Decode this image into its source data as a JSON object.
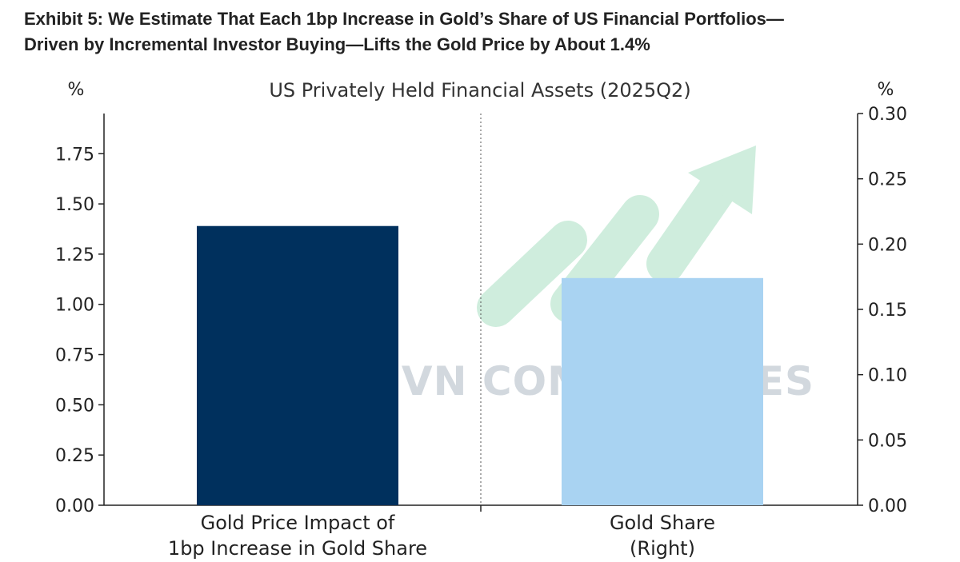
{
  "exhibit": {
    "title_line1": "Exhibit 5: We Estimate That Each 1bp Increase in Gold’s Share of US Financial Portfolios—",
    "title_line2": "Driven by Incremental Investor Buying—Lifts the Gold Price by About 1.4%"
  },
  "watermark": {
    "text": "VN COMMODITIES",
    "icon": "trend-arrow-icon",
    "color": "#bfe8d2"
  },
  "chart_data": {
    "type": "bar",
    "subtitle": "US Privately Held Financial Assets (2025Q2)",
    "categories": [
      {
        "line1": "Gold Price Impact of",
        "line2": "1bp Increase in Gold Share"
      },
      {
        "line1": "Gold Share",
        "line2": "(Right)"
      }
    ],
    "values": [
      1.39,
      0.174
    ],
    "value_axis": [
      "left",
      "right"
    ],
    "colors": [
      "#00305d",
      "#a9d3f2"
    ],
    "left_axis": {
      "label": "%",
      "ylim": [
        0,
        1.95
      ],
      "ticks": [
        {
          "value": 0,
          "label": "0.00"
        },
        {
          "value": 0.25,
          "label": "0.25"
        },
        {
          "value": 0.5,
          "label": "0.50"
        },
        {
          "value": 0.75,
          "label": "0.75"
        },
        {
          "value": 1.0,
          "label": "1.00"
        },
        {
          "value": 1.25,
          "label": "1.25"
        },
        {
          "value": 1.5,
          "label": "1.50"
        },
        {
          "value": 1.75,
          "label": "1.75"
        }
      ]
    },
    "right_axis": {
      "label": "%",
      "ylim": [
        0,
        0.3
      ],
      "ticks": [
        {
          "value": 0,
          "label": "0.00"
        },
        {
          "value": 0.05,
          "label": "0.05"
        },
        {
          "value": 0.1,
          "label": "0.10"
        },
        {
          "value": 0.15,
          "label": "0.15"
        },
        {
          "value": 0.2,
          "label": "0.20"
        },
        {
          "value": 0.25,
          "label": "0.25"
        },
        {
          "value": 0.3,
          "label": "0.30"
        }
      ]
    },
    "grid": false,
    "divider": "dotted"
  }
}
